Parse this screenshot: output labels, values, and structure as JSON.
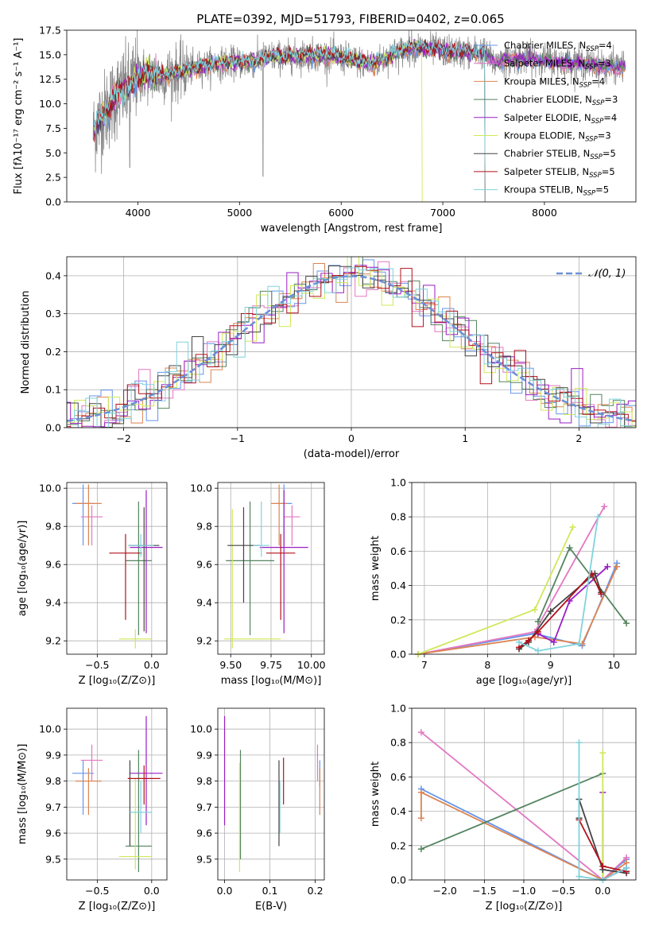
{
  "title": "PLATE=0392, MJD=51793, FIBERID=0402, z=0.065",
  "colors": {
    "Chabrier MILES": "#6495ed",
    "Salpeter MILES": "#e377c2",
    "Kroupa MILES": "#dd8452",
    "Chabrier ELODIE": "#55845f",
    "Salpeter ELODIE": "#9a1ec4",
    "Kroupa ELODIE": "#cfe85a",
    "Chabrier STELIB": "#444444",
    "Salpeter STELIB": "#b1111b",
    "Kroupa STELIB": "#7fd3dc"
  },
  "chart_data": [
    {
      "id": "spectrum",
      "type": "line",
      "xlabel": "wavelength [Angstrom, rest frame]",
      "ylabel": "Flux [fλ10⁻¹⁷ erg cm⁻² s⁻¹ A⁻¹]",
      "xlim": [
        3300,
        8900
      ],
      "ylim": [
        0,
        17.5
      ],
      "xticks": [
        "4000",
        "5000",
        "6000",
        "7000",
        "8000"
      ],
      "yticks": [
        "0.0",
        "2.5",
        "5.0",
        "7.5",
        "10.0",
        "12.5",
        "15.0",
        "17.5"
      ],
      "grid": false,
      "legend_position": "right",
      "legend": [
        {
          "name": "Chabrier MILES, N",
          "sub": "SSP",
          "suffix": "=4"
        },
        {
          "name": "Salpeter MILES, N",
          "sub": "SSP",
          "suffix": "=3"
        },
        {
          "name": "Kroupa MILES, N",
          "sub": "SSP",
          "suffix": "=4"
        },
        {
          "name": "Chabrier ELODIE, N",
          "sub": "SSP",
          "suffix": "=3"
        },
        {
          "name": "Salpeter ELODIE, N",
          "sub": "SSP",
          "suffix": "=4"
        },
        {
          "name": "Kroupa ELODIE, N",
          "sub": "SSP",
          "suffix": "=3"
        },
        {
          "name": "Chabrier STELIB, N",
          "sub": "SSP",
          "suffix": "=5"
        },
        {
          "name": "Salpeter STELIB, N",
          "sub": "SSP",
          "suffix": "=5"
        },
        {
          "name": "Kroupa STELIB, N",
          "sub": "SSP",
          "suffix": "=5"
        }
      ],
      "data_envelope": {
        "x": [
          3560,
          3600,
          3700,
          3800,
          3900,
          4000,
          4100,
          4200,
          4300,
          4400,
          4500,
          4700,
          4900,
          5100,
          5300,
          5500,
          5700,
          5900,
          6100,
          6300,
          6500,
          6700,
          6900,
          7100,
          7300,
          7400,
          7500,
          7700,
          7900,
          8100,
          8300,
          8500,
          8700,
          8800
        ],
        "y": [
          7.0,
          8.0,
          9.5,
          11.0,
          11.5,
          12.8,
          13.0,
          12.8,
          13.0,
          13.2,
          13.5,
          14.0,
          14.2,
          14.2,
          14.8,
          14.8,
          15.0,
          14.9,
          14.5,
          14.0,
          15.0,
          15.8,
          15.5,
          15.3,
          15.2,
          15.3,
          14.2,
          14.6,
          14.6,
          14.3,
          14.2,
          14.0,
          13.8,
          13.8
        ]
      }
    },
    {
      "id": "residuals",
      "type": "line",
      "xlabel": "(data-model)/error",
      "ylabel": "Normed distribution",
      "xlim": [
        -2.5,
        2.5
      ],
      "ylim": [
        0,
        0.45
      ],
      "xticks": [
        "−2",
        "−1",
        "0",
        "1",
        "2"
      ],
      "yticks": [
        "0.0",
        "0.1",
        "0.2",
        "0.3",
        "0.4"
      ],
      "grid": true,
      "legend_position": "top-right",
      "legend": "𝒩(0, 1)"
    },
    {
      "id": "age-vs-Z",
      "type": "scatter",
      "xlabel": "Z [log₁₀(Z/Z⊙)]",
      "ylabel": "age  [log₁₀(age/yr)]",
      "xlim": [
        -0.78,
        0.14
      ],
      "ylim": [
        9.13,
        10.03
      ],
      "xticks": [
        "−0.5",
        "0.0"
      ],
      "yticks": [
        "9.2",
        "9.4",
        "9.6",
        "9.8",
        "10.0"
      ],
      "grid": true,
      "points": [
        {
          "series": "Chabrier MILES",
          "x": -0.63,
          "y": 9.92,
          "xerr": [
            0.1,
            0.1
          ],
          "yerr": [
            0.22,
            0.1
          ]
        },
        {
          "series": "Salpeter MILES",
          "x": -0.55,
          "y": 9.85,
          "xerr": [
            0.1,
            0.1
          ],
          "yerr": [
            0.15,
            0.06
          ]
        },
        {
          "series": "Kroupa MILES",
          "x": -0.58,
          "y": 9.92,
          "xerr": [
            0.12,
            0.12
          ],
          "yerr": [
            0.22,
            0.1
          ]
        },
        {
          "series": "Chabrier ELODIE",
          "x": -0.12,
          "y": 9.62,
          "xerr": [
            0.12,
            0.12
          ],
          "yerr": [
            0.39,
            0.31
          ]
        },
        {
          "series": "Salpeter ELODIE",
          "x": -0.05,
          "y": 9.69,
          "xerr": [
            0.15,
            0.15
          ],
          "yerr": [
            0.45,
            0.3
          ]
        },
        {
          "series": "Kroupa ELODIE",
          "x": -0.15,
          "y": 9.21,
          "xerr": [
            0.15,
            0.15
          ],
          "yerr": [
            0.05,
            0.05
          ]
        },
        {
          "series": "Chabrier STELIB",
          "x": -0.07,
          "y": 9.7,
          "xerr": [
            0.14,
            0.14
          ],
          "yerr": [
            0.45,
            0.2
          ]
        },
        {
          "series": "Salpeter STELIB",
          "x": -0.24,
          "y": 9.66,
          "xerr": [
            0.15,
            0.15
          ],
          "yerr": [
            0.35,
            0.1
          ]
        },
        {
          "series": "Kroupa STELIB",
          "x": -0.1,
          "y": 9.7,
          "xerr": [
            0.12,
            0.12
          ],
          "yerr": [
            0.06,
            0.06
          ]
        }
      ]
    },
    {
      "id": "age-vs-mass",
      "type": "scatter",
      "xlabel": "mass [log₁₀(M/M⊙)]",
      "ylabel": "",
      "xlim": [
        9.42,
        10.08
      ],
      "ylim": [
        9.13,
        10.03
      ],
      "xticks": [
        "9.50",
        "9.75",
        "10.00"
      ],
      "yticks": [
        "9.2",
        "9.4",
        "9.6",
        "9.8",
        "10.0"
      ],
      "grid": true,
      "points": [
        {
          "series": "Chabrier MILES",
          "x": 9.83,
          "y": 9.92,
          "xerr": [
            0.05,
            0.05
          ],
          "yerr": [
            0.22,
            0.1
          ]
        },
        {
          "series": "Salpeter MILES",
          "x": 9.88,
          "y": 9.85,
          "xerr": [
            0.05,
            0.05
          ],
          "yerr": [
            0.15,
            0.06
          ]
        },
        {
          "series": "Kroupa MILES",
          "x": 9.8,
          "y": 9.92,
          "xerr": [
            0.05,
            0.05
          ],
          "yerr": [
            0.22,
            0.1
          ]
        },
        {
          "series": "Chabrier ELODIE",
          "x": 9.62,
          "y": 9.62,
          "xerr": [
            0.15,
            0.15
          ],
          "yerr": [
            0.39,
            0.31
          ]
        },
        {
          "series": "Salpeter ELODIE",
          "x": 9.83,
          "y": 9.69,
          "xerr": [
            0.15,
            0.15
          ],
          "yerr": [
            0.45,
            0.3
          ]
        },
        {
          "series": "Kroupa ELODIE",
          "x": 9.51,
          "y": 9.21,
          "xerr": [
            0.05,
            0.3
          ],
          "yerr": [
            0.05,
            0.68
          ]
        },
        {
          "series": "Chabrier STELIB",
          "x": 9.58,
          "y": 9.7,
          "xerr": [
            0.1,
            0.1
          ],
          "yerr": [
            0.3,
            0.2
          ]
        },
        {
          "series": "Salpeter STELIB",
          "x": 9.81,
          "y": 9.66,
          "xerr": [
            0.09,
            0.09
          ],
          "yerr": [
            0.35,
            0.1
          ]
        },
        {
          "series": "Kroupa STELIB",
          "x": 9.69,
          "y": 9.7,
          "xerr": [
            0.05,
            0.05
          ],
          "yerr": [
            0.06,
            0.23
          ]
        }
      ]
    },
    {
      "id": "weight-vs-age",
      "type": "line",
      "xlabel": "age  [log₁₀(age/yr)]",
      "ylabel": "mass weight",
      "xlim": [
        6.8,
        10.35
      ],
      "ylim": [
        0,
        1.0
      ],
      "xticks": [
        "7",
        "8",
        "9",
        "10"
      ],
      "yticks": [
        "0.0",
        "0.2",
        "0.4",
        "0.6",
        "0.8",
        "1.0"
      ],
      "grid": true,
      "series": [
        {
          "name": "Chabrier MILES",
          "x": [
            6.9,
            8.75,
            9.5,
            10.05
          ],
          "y": [
            0.0,
            0.12,
            0.05,
            0.53
          ]
        },
        {
          "name": "Salpeter MILES",
          "x": [
            6.9,
            8.75,
            9.85
          ],
          "y": [
            0.0,
            0.13,
            0.86
          ]
        },
        {
          "name": "Kroupa MILES",
          "x": [
            6.9,
            8.75,
            9.5,
            10.05
          ],
          "y": [
            0.0,
            0.1,
            0.06,
            0.51
          ]
        },
        {
          "name": "Chabrier ELODIE",
          "x": [
            8.8,
            9.3,
            10.2
          ],
          "y": [
            0.19,
            0.62,
            0.18
          ]
        },
        {
          "name": "Salpeter ELODIE",
          "x": [
            8.8,
            9.05,
            9.3,
            9.9
          ],
          "y": [
            0.12,
            0.07,
            0.31,
            0.51
          ]
        },
        {
          "name": "Kroupa ELODIE",
          "x": [
            6.9,
            8.75,
            9.35
          ],
          "y": [
            0.0,
            0.26,
            0.74
          ]
        },
        {
          "name": "Chabrier STELIB",
          "x": [
            8.5,
            8.65,
            9.0,
            9.7,
            9.8
          ],
          "y": [
            0.03,
            0.07,
            0.25,
            0.47,
            0.36
          ]
        },
        {
          "name": "Salpeter STELIB",
          "x": [
            8.5,
            8.65,
            8.8,
            9.65,
            9.8
          ],
          "y": [
            0.04,
            0.08,
            0.13,
            0.47,
            0.35
          ]
        },
        {
          "name": "Kroupa STELIB",
          "x": [
            8.5,
            8.8,
            9.45,
            9.75
          ],
          "y": [
            0.07,
            0.02,
            0.06,
            0.8
          ]
        }
      ]
    },
    {
      "id": "mass-vs-Z",
      "type": "scatter",
      "xlabel": "Z [log₁₀(Z/Z⊙)]",
      "ylabel": "mass [log₁₀(M/M⊙)]",
      "xlim": [
        -0.78,
        0.14
      ],
      "ylim": [
        9.42,
        10.08
      ],
      "xticks": [
        "−0.5",
        "0.0"
      ],
      "yticks": [
        "9.5",
        "9.6",
        "9.7",
        "9.8",
        "9.9",
        "10.0"
      ],
      "grid": true,
      "points": [
        {
          "series": "Chabrier MILES",
          "x": -0.63,
          "y": 9.83,
          "xerr": [
            0.1,
            0.1
          ],
          "yerr": [
            0.16,
            0.05
          ]
        },
        {
          "series": "Salpeter MILES",
          "x": -0.55,
          "y": 9.88,
          "xerr": [
            0.1,
            0.1
          ],
          "yerr": [
            0.08,
            0.06
          ]
        },
        {
          "series": "Kroupa MILES",
          "x": -0.58,
          "y": 9.8,
          "xerr": [
            0.12,
            0.12
          ],
          "yerr": [
            0.13,
            0.05
          ]
        },
        {
          "series": "Chabrier ELODIE",
          "x": -0.12,
          "y": 9.55,
          "xerr": [
            0.12,
            0.12
          ],
          "yerr": [
            0.1,
            0.37
          ]
        },
        {
          "series": "Salpeter ELODIE",
          "x": -0.05,
          "y": 9.83,
          "xerr": [
            0.15,
            0.15
          ],
          "yerr": [
            0.2,
            0.22
          ]
        },
        {
          "series": "Kroupa ELODIE",
          "x": -0.15,
          "y": 9.51,
          "xerr": [
            0.15,
            0.15
          ],
          "yerr": [
            0.05,
            0.3
          ]
        },
        {
          "series": "Chabrier STELIB",
          "x": -0.2,
          "y": 9.7,
          "xerr": [
            0.0,
            0.0
          ],
          "yerr": [
            0.15,
            0.18
          ]
        },
        {
          "series": "Salpeter STELIB",
          "x": -0.07,
          "y": 9.81,
          "xerr": [
            0.15,
            0.15
          ],
          "yerr": [
            0.1,
            0.05
          ]
        },
        {
          "series": "Kroupa STELIB",
          "x": -0.1,
          "y": 9.68,
          "xerr": [
            0.1,
            0.1
          ],
          "yerr": [
            0.08,
            0.12
          ]
        }
      ]
    },
    {
      "id": "mass-vs-EBV",
      "type": "scatter",
      "xlabel": "E(B-V)",
      "ylabel": "",
      "xlim": [
        -0.015,
        0.22
      ],
      "ylim": [
        9.42,
        10.08
      ],
      "xticks": [
        "0.0",
        "0.1",
        "0.2"
      ],
      "yticks": [
        "9.5",
        "9.6",
        "9.7",
        "9.8",
        "9.9",
        "10.0"
      ],
      "grid": true,
      "points": [
        {
          "series": "Chabrier MILES",
          "x": 0.21,
          "y": 9.83,
          "yerr": [
            0.05,
            0.05
          ]
        },
        {
          "series": "Salpeter MILES",
          "x": 0.205,
          "y": 9.88,
          "yerr": [
            0.08,
            0.06
          ]
        },
        {
          "series": "Kroupa MILES",
          "x": 0.21,
          "y": 9.8,
          "yerr": [
            0.13,
            0.05
          ]
        },
        {
          "series": "Chabrier ELODIE",
          "x": 0.035,
          "y": 9.8,
          "yerr": [
            0.3,
            0.12
          ]
        },
        {
          "series": "Salpeter ELODIE",
          "x": 0.0,
          "y": 9.83,
          "yerr": [
            0.2,
            0.22
          ]
        },
        {
          "series": "Kroupa ELODIE",
          "x": 0.033,
          "y": 9.6,
          "yerr": [
            0.15,
            0.27
          ]
        },
        {
          "series": "Chabrier STELIB",
          "x": 0.12,
          "y": 9.7,
          "yerr": [
            0.15,
            0.18
          ]
        },
        {
          "series": "Salpeter STELIB",
          "x": 0.13,
          "y": 9.81,
          "yerr": [
            0.1,
            0.08
          ]
        },
        {
          "series": "Kroupa STELIB",
          "x": 0.122,
          "y": 9.68,
          "yerr": [
            0.08,
            0.12
          ]
        }
      ]
    },
    {
      "id": "weight-vs-Z",
      "type": "line",
      "xlabel": "Z [log₁₀(Z/Z⊙)]",
      "ylabel": "mass weight",
      "xlim": [
        -2.42,
        0.42
      ],
      "ylim": [
        0,
        1.0
      ],
      "xticks": [
        "−2.0",
        "−1.5",
        "−1.0",
        "−0.5",
        "0.0"
      ],
      "yticks": [
        "0.0",
        "0.2",
        "0.4",
        "0.6",
        "0.8",
        "1.0"
      ],
      "grid": true,
      "series": [
        {
          "name": "Chabrier MILES",
          "x": [
            -2.3,
            0.0,
            0.3
          ],
          "y": [
            0.53,
            0.0,
            0.12
          ]
        },
        {
          "name": "Salpeter MILES",
          "x": [
            -2.3,
            0.0,
            0.3
          ],
          "y": [
            0.86,
            0.0,
            0.13
          ]
        },
        {
          "name": "Kroupa MILES",
          "x": [
            -2.3,
            -2.3,
            0.0,
            0.3
          ],
          "y": [
            0.36,
            0.51,
            0.0,
            0.1
          ]
        },
        {
          "name": "Chabrier ELODIE",
          "x": [
            -2.3,
            0.0
          ],
          "y": [
            0.18,
            0.62
          ]
        },
        {
          "name": "Salpeter ELODIE",
          "x": [
            0.0,
            0.0,
            0.3
          ],
          "y": [
            0.51,
            0.0,
            0.07
          ]
        },
        {
          "name": "Kroupa ELODIE",
          "x": [
            0.0,
            0.0
          ],
          "y": [
            0.0,
            0.74
          ]
        },
        {
          "name": "Chabrier STELIB",
          "x": [
            -0.3,
            -0.3,
            0.0,
            0.3
          ],
          "y": [
            0.36,
            0.47,
            0.06,
            0.04
          ]
        },
        {
          "name": "Salpeter STELIB",
          "x": [
            -0.3,
            0.0,
            0.3
          ],
          "y": [
            0.35,
            0.08,
            0.05
          ]
        },
        {
          "name": "Kroupa STELIB",
          "x": [
            -0.3,
            -0.3,
            0.0,
            0.3
          ],
          "y": [
            0.8,
            0.02,
            0.0,
            0.07
          ]
        }
      ]
    }
  ]
}
